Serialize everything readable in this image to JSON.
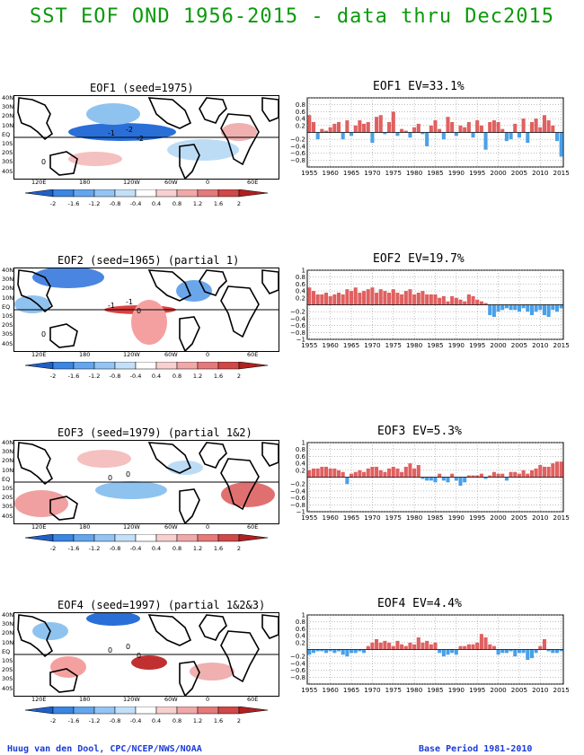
{
  "title": "SST EOF OND 1956-2015 - data thru Dec2015",
  "footer_left": "Huug van den Dool, CPC/NCEP/NWS/NOAA",
  "footer_right": "Base Period 1981-2010",
  "colors": {
    "title": "#0a9a0a",
    "footer": "#1a3bd8",
    "positive": "#e06060",
    "negative": "#4aa0e8"
  },
  "map_lat_labels": [
    "40N",
    "30N",
    "20N",
    "10N",
    "EQ",
    "10S",
    "20S",
    "30S",
    "40S"
  ],
  "map_lon_labels": [
    "120E",
    "180",
    "120W",
    "60W",
    "0",
    "60E"
  ],
  "colorbar_labels": [
    "-2",
    "-1.6",
    "-1.2",
    "-0.8",
    "-0.4",
    "0.4",
    "0.8",
    "1.2",
    "1.6",
    "2"
  ],
  "panels": [
    {
      "map_title": "EOF1   (seed=1975)",
      "ts_title": "EOF1   EV=33.1%",
      "map_labels": [
        "-1",
        "-2",
        "-2",
        "0"
      ]
    },
    {
      "map_title": "EOF2   (seed=1965) (partial 1)",
      "ts_title": "EOF2   EV=19.7%",
      "map_labels": [
        "-1",
        "-1",
        "0",
        "0"
      ]
    },
    {
      "map_title": "EOF3   (seed=1979) (partial 1&2)",
      "ts_title": "EOF3   EV=5.3%",
      "map_labels": [
        "0",
        "0"
      ]
    },
    {
      "map_title": "EOF4   (seed=1997) (partial 1&2&3)",
      "ts_title": "EOF4   EV=4.4%",
      "map_labels": [
        "0",
        "0",
        "0"
      ]
    }
  ],
  "chart_data": [
    {
      "type": "bar",
      "x": [
        1955,
        1956,
        1957,
        1958,
        1959,
        1960,
        1961,
        1962,
        1963,
        1964,
        1965,
        1966,
        1967,
        1968,
        1969,
        1970,
        1971,
        1972,
        1973,
        1974,
        1975,
        1976,
        1977,
        1978,
        1979,
        1980,
        1981,
        1982,
        1983,
        1984,
        1985,
        1986,
        1987,
        1988,
        1989,
        1990,
        1991,
        1992,
        1993,
        1994,
        1995,
        1996,
        1997,
        1998,
        1999,
        2000,
        2001,
        2002,
        2003,
        2004,
        2005,
        2006,
        2007,
        2008,
        2009,
        2010,
        2011,
        2012,
        2013,
        2014,
        2015
      ],
      "values": [
        0.5,
        0.3,
        -0.2,
        0.1,
        0.05,
        0.15,
        0.25,
        0.3,
        -0.2,
        0.35,
        -0.1,
        0.2,
        0.35,
        0.25,
        0.3,
        -0.3,
        0.45,
        0.5,
        -0.05,
        0.3,
        0.6,
        -0.1,
        0.1,
        0.05,
        -0.15,
        0.15,
        0.25,
        -0.05,
        -0.4,
        0.2,
        0.35,
        0.1,
        -0.2,
        0.45,
        0.3,
        -0.1,
        0.2,
        0.15,
        0.3,
        -0.15,
        0.35,
        0.2,
        -0.5,
        0.3,
        0.35,
        0.3,
        0.1,
        -0.25,
        -0.2,
        0.25,
        -0.15,
        0.4,
        -0.3,
        0.3,
        0.4,
        0.15,
        0.5,
        0.35,
        0.2,
        -0.25,
        -0.7
      ],
      "ylim": [
        -1,
        1
      ],
      "yticks": [
        -1,
        -0.8,
        -0.6,
        -0.4,
        -0.2,
        0,
        0.2,
        0.4,
        0.6,
        0.8,
        1
      ],
      "ylabels": [
        "",
        "−0.8",
        "−0.6",
        "−0.4",
        "−0.2",
        "",
        "0.2",
        "0.4",
        "0.6",
        "0.8",
        ""
      ],
      "xticks": [
        1955,
        1960,
        1965,
        1970,
        1975,
        1980,
        1985,
        1990,
        1995,
        2000,
        2005,
        2010,
        2015
      ]
    },
    {
      "type": "bar",
      "x": [
        1955,
        1956,
        1957,
        1958,
        1959,
        1960,
        1961,
        1962,
        1963,
        1964,
        1965,
        1966,
        1967,
        1968,
        1969,
        1970,
        1971,
        1972,
        1973,
        1974,
        1975,
        1976,
        1977,
        1978,
        1979,
        1980,
        1981,
        1982,
        1983,
        1984,
        1985,
        1986,
        1987,
        1988,
        1989,
        1990,
        1991,
        1992,
        1993,
        1994,
        1995,
        1996,
        1997,
        1998,
        1999,
        2000,
        2001,
        2002,
        2003,
        2004,
        2005,
        2006,
        2007,
        2008,
        2009,
        2010,
        2011,
        2012,
        2013,
        2014,
        2015
      ],
      "values": [
        0.5,
        0.4,
        0.3,
        0.3,
        0.35,
        0.25,
        0.3,
        0.35,
        0.3,
        0.45,
        0.4,
        0.5,
        0.35,
        0.4,
        0.45,
        0.5,
        0.35,
        0.45,
        0.4,
        0.35,
        0.45,
        0.35,
        0.3,
        0.4,
        0.45,
        0.3,
        0.35,
        0.4,
        0.3,
        0.3,
        0.3,
        0.2,
        0.25,
        0.1,
        0.25,
        0.2,
        0.15,
        0.1,
        0.3,
        0.25,
        0.15,
        0.1,
        0.05,
        -0.3,
        -0.35,
        -0.2,
        -0.15,
        -0.1,
        -0.15,
        -0.15,
        -0.2,
        -0.1,
        -0.2,
        -0.3,
        -0.2,
        -0.15,
        -0.3,
        -0.35,
        -0.15,
        -0.2,
        -0.1
      ],
      "ylim": [
        -1,
        1
      ],
      "yticks": [
        -1,
        -0.8,
        -0.6,
        -0.4,
        -0.2,
        0,
        0.2,
        0.4,
        0.6,
        0.8,
        1
      ],
      "ylabels": [
        "−1",
        "−0.8",
        "−0.6",
        "−0.4",
        "−0.2",
        "",
        "0.2",
        "0.4",
        "0.6",
        "0.8",
        "1"
      ],
      "xticks": [
        1955,
        1960,
        1965,
        1970,
        1975,
        1980,
        1985,
        1990,
        1995,
        2000,
        2005,
        2010,
        2015
      ]
    },
    {
      "type": "bar",
      "x": [
        1955,
        1956,
        1957,
        1958,
        1959,
        1960,
        1961,
        1962,
        1963,
        1964,
        1965,
        1966,
        1967,
        1968,
        1969,
        1970,
        1971,
        1972,
        1973,
        1974,
        1975,
        1976,
        1977,
        1978,
        1979,
        1980,
        1981,
        1982,
        1983,
        1984,
        1985,
        1986,
        1987,
        1988,
        1989,
        1990,
        1991,
        1992,
        1993,
        1994,
        1995,
        1996,
        1997,
        1998,
        1999,
        2000,
        2001,
        2002,
        2003,
        2004,
        2005,
        2006,
        2007,
        2008,
        2009,
        2010,
        2011,
        2012,
        2013,
        2014,
        2015
      ],
      "values": [
        0.2,
        0.25,
        0.25,
        0.3,
        0.3,
        0.25,
        0.25,
        0.2,
        0.15,
        -0.2,
        0.1,
        0.15,
        0.2,
        0.15,
        0.25,
        0.3,
        0.3,
        0.2,
        0.15,
        0.25,
        0.3,
        0.25,
        0.15,
        0.3,
        0.4,
        0.25,
        0.35,
        -0.05,
        -0.1,
        -0.1,
        -0.15,
        0.1,
        -0.1,
        -0.15,
        0.1,
        -0.1,
        -0.25,
        -0.15,
        0.05,
        0.05,
        0.05,
        0.1,
        -0.05,
        0.05,
        0.15,
        0.1,
        0.1,
        -0.1,
        0.15,
        0.15,
        0.1,
        0.2,
        0.1,
        0.2,
        0.25,
        0.35,
        0.3,
        0.3,
        0.4,
        0.45,
        0.45
      ],
      "ylim": [
        -1,
        1
      ],
      "yticks": [
        -1,
        -0.8,
        -0.6,
        -0.4,
        -0.2,
        0,
        0.2,
        0.4,
        0.6,
        0.8,
        1
      ],
      "ylabels": [
        "−1",
        "−0.8",
        "−0.6",
        "−0.4",
        "−0.2",
        "",
        "0.2",
        "0.4",
        "0.6",
        "0.8",
        "1"
      ],
      "xticks": [
        1955,
        1960,
        1965,
        1970,
        1975,
        1980,
        1985,
        1990,
        1995,
        2000,
        2005,
        2010,
        2015
      ]
    },
    {
      "type": "bar",
      "x": [
        1955,
        1956,
        1957,
        1958,
        1959,
        1960,
        1961,
        1962,
        1963,
        1964,
        1965,
        1966,
        1967,
        1968,
        1969,
        1970,
        1971,
        1972,
        1973,
        1974,
        1975,
        1976,
        1977,
        1978,
        1979,
        1980,
        1981,
        1982,
        1983,
        1984,
        1985,
        1986,
        1987,
        1988,
        1989,
        1990,
        1991,
        1992,
        1993,
        1994,
        1995,
        1996,
        1997,
        1998,
        1999,
        2000,
        2001,
        2002,
        2003,
        2004,
        2005,
        2006,
        2007,
        2008,
        2009,
        2010,
        2011,
        2012,
        2013,
        2014,
        2015
      ],
      "values": [
        -0.15,
        -0.1,
        -0.05,
        -0.05,
        -0.1,
        -0.05,
        -0.1,
        -0.05,
        -0.15,
        -0.2,
        -0.1,
        -0.1,
        -0.05,
        -0.1,
        0.1,
        0.2,
        0.3,
        0.2,
        0.25,
        0.2,
        0.1,
        0.25,
        0.15,
        0.1,
        0.2,
        0.15,
        0.35,
        0.2,
        0.25,
        0.15,
        0.2,
        -0.1,
        -0.2,
        -0.15,
        -0.1,
        -0.15,
        0.1,
        0.1,
        0.15,
        0.15,
        0.2,
        0.45,
        0.35,
        0.15,
        0.1,
        -0.15,
        -0.1,
        -0.1,
        -0.05,
        -0.2,
        -0.1,
        -0.1,
        -0.3,
        -0.25,
        -0.1,
        0.1,
        0.3,
        -0.05,
        -0.1,
        -0.1,
        -0.05
      ],
      "ylim": [
        -1,
        1
      ],
      "yticks": [
        -1,
        -0.8,
        -0.6,
        -0.4,
        -0.2,
        0,
        0.2,
        0.4,
        0.6,
        0.8,
        1
      ],
      "ylabels": [
        "",
        "−0.8",
        "−0.6",
        "−0.4",
        "−0.2",
        "",
        "0.2",
        "0.4",
        "0.6",
        "0.8",
        "1"
      ],
      "xticks": [
        1955,
        1960,
        1965,
        1970,
        1975,
        1980,
        1985,
        1990,
        1995,
        2000,
        2005,
        2010,
        2015
      ]
    }
  ]
}
